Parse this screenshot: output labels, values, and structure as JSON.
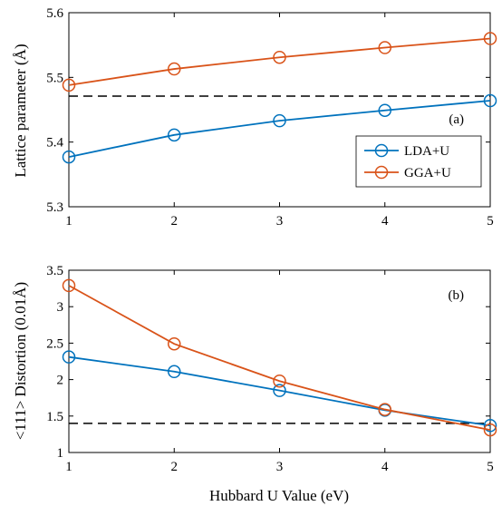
{
  "chart_data": [
    {
      "type": "line",
      "panel_label": "(a)",
      "ylabel": "Lattice parameter (Å)",
      "xlabel": "",
      "x": [
        1,
        2,
        3,
        4,
        5
      ],
      "xlim": [
        1,
        5
      ],
      "ylim": [
        5.3,
        5.6
      ],
      "xticks": [
        "1",
        "2",
        "3",
        "4",
        "5"
      ],
      "yticks": [
        "5.3",
        "5.4",
        "5.5",
        "5.6"
      ],
      "reference_line": 5.471,
      "legend_position": "right",
      "series": [
        {
          "name": "LDA+U",
          "color": "#0072BD",
          "values": [
            5.377,
            5.411,
            5.433,
            5.449,
            5.464
          ]
        },
        {
          "name": "GGA+U",
          "color": "#D95319",
          "values": [
            5.488,
            5.513,
            5.531,
            5.546,
            5.56
          ]
        }
      ]
    },
    {
      "type": "line",
      "panel_label": "(b)",
      "ylabel": "<111> Distortion (0.01Å)",
      "xlabel": "Hubbard U Value (eV)",
      "x": [
        1,
        2,
        3,
        4,
        5
      ],
      "xlim": [
        1,
        5
      ],
      "ylim": [
        1,
        3.5
      ],
      "xticks": [
        "1",
        "2",
        "3",
        "4",
        "5"
      ],
      "yticks": [
        "1",
        "1.5",
        "2",
        "2.5",
        "3",
        "3.5"
      ],
      "reference_line": 1.4,
      "series": [
        {
          "name": "LDA+U",
          "color": "#0072BD",
          "values": [
            2.31,
            2.11,
            1.85,
            1.58,
            1.37
          ]
        },
        {
          "name": "GGA+U",
          "color": "#D95319",
          "values": [
            3.29,
            2.49,
            1.98,
            1.59,
            1.31
          ]
        }
      ]
    }
  ]
}
